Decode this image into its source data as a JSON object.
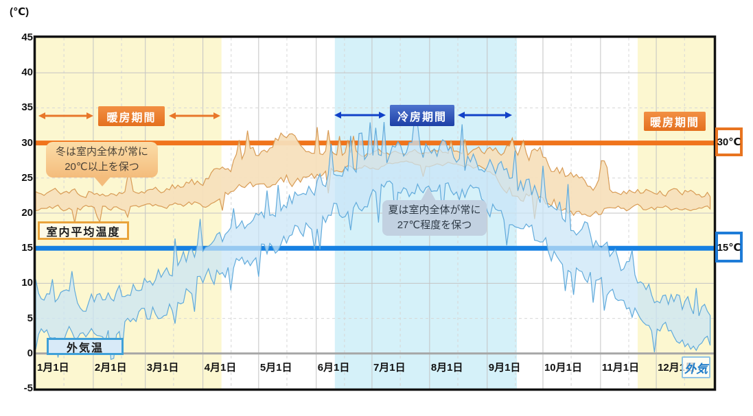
{
  "unit_label": "(℃)",
  "colors": {
    "heating_bg": "#FCF7D0",
    "cooling_bg": "#D5F1F9",
    "heating_accent": "#E8772A",
    "cooling_accent": "#1141C8",
    "line30": "#F0741C",
    "line15": "#1680E2",
    "indoor_fill": "#F6E0BB",
    "indoor_edge": "#D89B55",
    "outdoor_fill": "#C9E5F6",
    "outdoor_edge": "#60AADB",
    "grid": "#C3C3C3",
    "grid_dashed": "#D6D6D6",
    "zero_line": "#A6A6A6",
    "border": "#121212"
  },
  "badges": {
    "heating_left": "暖房期間",
    "cooling": "冷房期間",
    "heating_right": "暖房期間"
  },
  "callouts": {
    "winter": "冬は室内全体が常に\n20℃以上を保つ",
    "summer": "夏は室内全体が常に\n27℃程度を保つ"
  },
  "labels": {
    "indoor_series": "室内平均温度",
    "outdoor_series": "外気温",
    "outdoor_note": "外気"
  },
  "chart_data": {
    "type": "area",
    "title": "",
    "ylabel": "(℃)",
    "ylim": [
      -5,
      45
    ],
    "yticks": [
      45,
      40,
      35,
      30,
      25,
      20,
      15,
      10,
      5,
      0,
      -5
    ],
    "days_in_year": 365,
    "x_tick_labels": [
      "1月1日",
      "2月1日",
      "3月1日",
      "4月1日",
      "5月1日",
      "6月1日",
      "7月1日",
      "8月1日",
      "9月1日",
      "10月1日",
      "11月1日",
      "12月1日"
    ],
    "month_start_days": [
      0,
      31,
      59,
      90,
      120,
      151,
      181,
      212,
      243,
      273,
      304,
      334
    ],
    "periods": [
      {
        "name": "暖房期間",
        "kind": "heating",
        "start_day": 0,
        "end_day": 100
      },
      {
        "name": "冷房期間",
        "kind": "cooling",
        "start_day": 161,
        "end_day": 259
      },
      {
        "name": "暖房期間",
        "kind": "heating",
        "start_day": 324,
        "end_day": 365
      }
    ],
    "reference_lines": [
      {
        "label": "30℃",
        "value": 30
      },
      {
        "label": "15℃",
        "value": 15
      }
    ],
    "series": [
      {
        "name": "室内平均温度",
        "kind": "indoor",
        "x_days": [
          0,
          15,
          32,
          46,
          60,
          75,
          91,
          100,
          110,
          121,
          135,
          152,
          161,
          170,
          182,
          196,
          213,
          227,
          244,
          252,
          258,
          266,
          274,
          288,
          305,
          316,
          324,
          335,
          350,
          364
        ],
        "upper": [
          23.5,
          24,
          24,
          24.5,
          24.5,
          25,
          26,
          27.5,
          30,
          31,
          33,
          30.5,
          30,
          29.5,
          29.5,
          29.5,
          29.5,
          29.5,
          30,
          31,
          32,
          31,
          30,
          28,
          26,
          25,
          24.5,
          24,
          24,
          23.5
        ],
        "lower": [
          20,
          20,
          20,
          20,
          20,
          20,
          20.5,
          21,
          22,
          22,
          23,
          24,
          25,
          26,
          26,
          26.5,
          26.5,
          26.5,
          25.5,
          23,
          21,
          20.5,
          20,
          19,
          19,
          19.5,
          20,
          20,
          20,
          20
        ]
      },
      {
        "name": "外気温",
        "kind": "outdoor",
        "x_days": [
          0,
          15,
          32,
          46,
          60,
          75,
          91,
          105,
          121,
          135,
          152,
          165,
          182,
          196,
          213,
          227,
          244,
          258,
          274,
          288,
          305,
          320,
          335,
          350,
          364
        ],
        "upper": [
          10,
          10,
          10,
          11,
          13,
          15,
          18,
          20,
          22,
          24,
          27,
          30,
          31,
          32,
          32,
          31,
          30,
          28,
          25,
          22,
          18,
          14,
          11,
          9,
          8
        ],
        "lower": [
          1,
          0.5,
          0.5,
          1,
          3,
          5,
          8,
          10,
          12,
          14,
          16,
          18,
          20,
          21,
          21,
          20,
          18,
          16,
          13,
          10,
          7,
          4,
          1,
          -1,
          -2
        ]
      }
    ]
  }
}
